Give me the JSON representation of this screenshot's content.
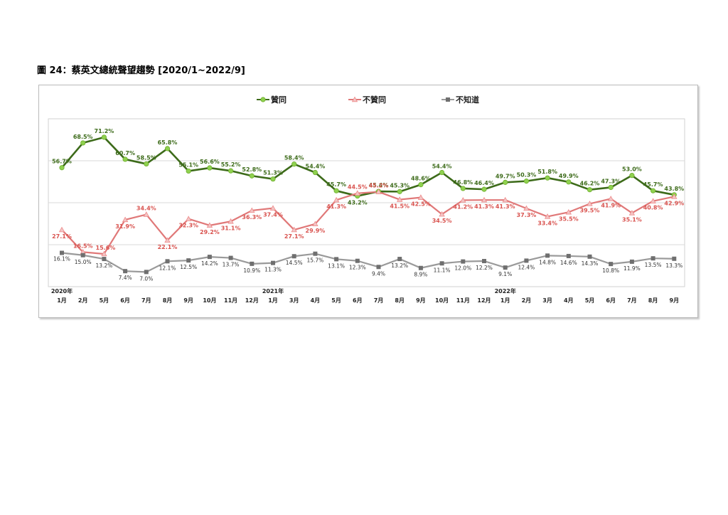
{
  "figure_title": "圖 24：蔡英文總統聲望趨勢  [2020/1~2022/9]",
  "colors": {
    "approve": "#3d6b1a",
    "approve_marker": "#8fd14f",
    "disapprove": "#e07878",
    "disapprove_marker": "#f2c6c6",
    "unsure": "#9a9a9a",
    "unsure_marker": "#6f6f6f"
  },
  "chart_data": {
    "type": "line",
    "categories": [
      "1月",
      "2月",
      "5月",
      "6月",
      "7月",
      "8月",
      "9月",
      "10月",
      "11月",
      "12月",
      "1月",
      "3月",
      "4月",
      "5月",
      "6月",
      "7月",
      "8月",
      "9月",
      "10月",
      "11月",
      "12月",
      "1月",
      "2月",
      "3月",
      "4月",
      "5月",
      "6月",
      "7月",
      "8月",
      "9月"
    ],
    "year_markers": [
      {
        "index": 0,
        "label": "2020年"
      },
      {
        "index": 10,
        "label": "2021年"
      },
      {
        "index": 21,
        "label": "2022年"
      }
    ],
    "series": [
      {
        "name": "贊同",
        "values": [
          56.7,
          68.5,
          71.2,
          60.7,
          58.5,
          65.8,
          55.1,
          56.6,
          55.2,
          52.8,
          51.3,
          58.4,
          54.4,
          45.7,
          43.2,
          45.4,
          45.3,
          48.6,
          54.4,
          46.8,
          46.4,
          49.7,
          50.3,
          51.8,
          49.9,
          46.2,
          47.3,
          53.0,
          45.7,
          43.8
        ],
        "labels": [
          "56.7%",
          "68.5%",
          "71.2%",
          "60.7%",
          "58.5%",
          "65.8%",
          "55.1%",
          "56.6%",
          "55.2%",
          "52.8%",
          "51.3%",
          "58.4%",
          "54.4%",
          "45.7%",
          "43.2%",
          "45.4%",
          "45.3%",
          "48.6%",
          "54.4%",
          "46.8%",
          "46.4%",
          "49.7%",
          "50.3%",
          "51.8%",
          "49.9%",
          "46.2%",
          "47.3%",
          "53.0%",
          "45.7%",
          "43.8%"
        ]
      },
      {
        "name": "不贊同",
        "values": [
          27.1,
          16.5,
          15.6,
          31.9,
          34.4,
          22.1,
          32.3,
          29.2,
          31.1,
          36.3,
          37.4,
          27.1,
          29.9,
          41.3,
          44.5,
          45.2,
          41.5,
          42.5,
          34.5,
          41.2,
          41.3,
          41.3,
          37.3,
          33.4,
          35.5,
          39.5,
          41.9,
          35.1,
          40.8,
          42.9
        ],
        "labels": [
          "27.1%",
          "16.5%",
          "15.6%",
          "31.9%",
          "34.4%",
          "22.1%",
          "32.3%",
          "29.2%",
          "31.1%",
          "36.3%",
          "37.4%",
          "27.1%",
          "29.9%",
          "41.3%",
          "44.5%",
          "45.2%",
          "41.5%",
          "42.5%",
          "34.5%",
          "41.2%",
          "41.3%",
          "41.3%",
          "37.3%",
          "33.4%",
          "35.5%",
          "39.5%",
          "41.9%",
          "35.1%",
          "40.8%",
          "42.9%"
        ]
      },
      {
        "name": "不知道",
        "values": [
          16.1,
          15.0,
          13.2,
          7.4,
          7.0,
          12.1,
          12.5,
          14.2,
          13.7,
          10.9,
          11.3,
          14.5,
          15.7,
          13.1,
          12.3,
          9.4,
          13.2,
          8.9,
          11.1,
          12.0,
          12.2,
          9.1,
          12.4,
          14.8,
          14.6,
          14.3,
          10.8,
          11.9,
          13.5,
          13.3
        ],
        "labels": [
          "16.1%",
          "15.0%",
          "13.2%",
          "7.4%",
          "7.0%",
          "12.1%",
          "12.5%",
          "14.2%",
          "13.7%",
          "10.9%",
          "11.3%",
          "14.5%",
          "15.7%",
          "13.1%",
          "12.3%",
          "9.4%",
          "13.2%",
          "8.9%",
          "11.1%",
          "12.0%",
          "12.2%",
          "9.1%",
          "12.4%",
          "14.8%",
          "14.6%",
          "14.3%",
          "10.8%",
          "11.9%",
          "13.5%",
          "13.3%"
        ]
      }
    ],
    "legend_position": "top-center",
    "grid": true,
    "ylim": [
      0,
      80
    ],
    "gridlines_at": [
      20,
      40,
      60
    ],
    "xlabel": "",
    "ylabel": ""
  }
}
